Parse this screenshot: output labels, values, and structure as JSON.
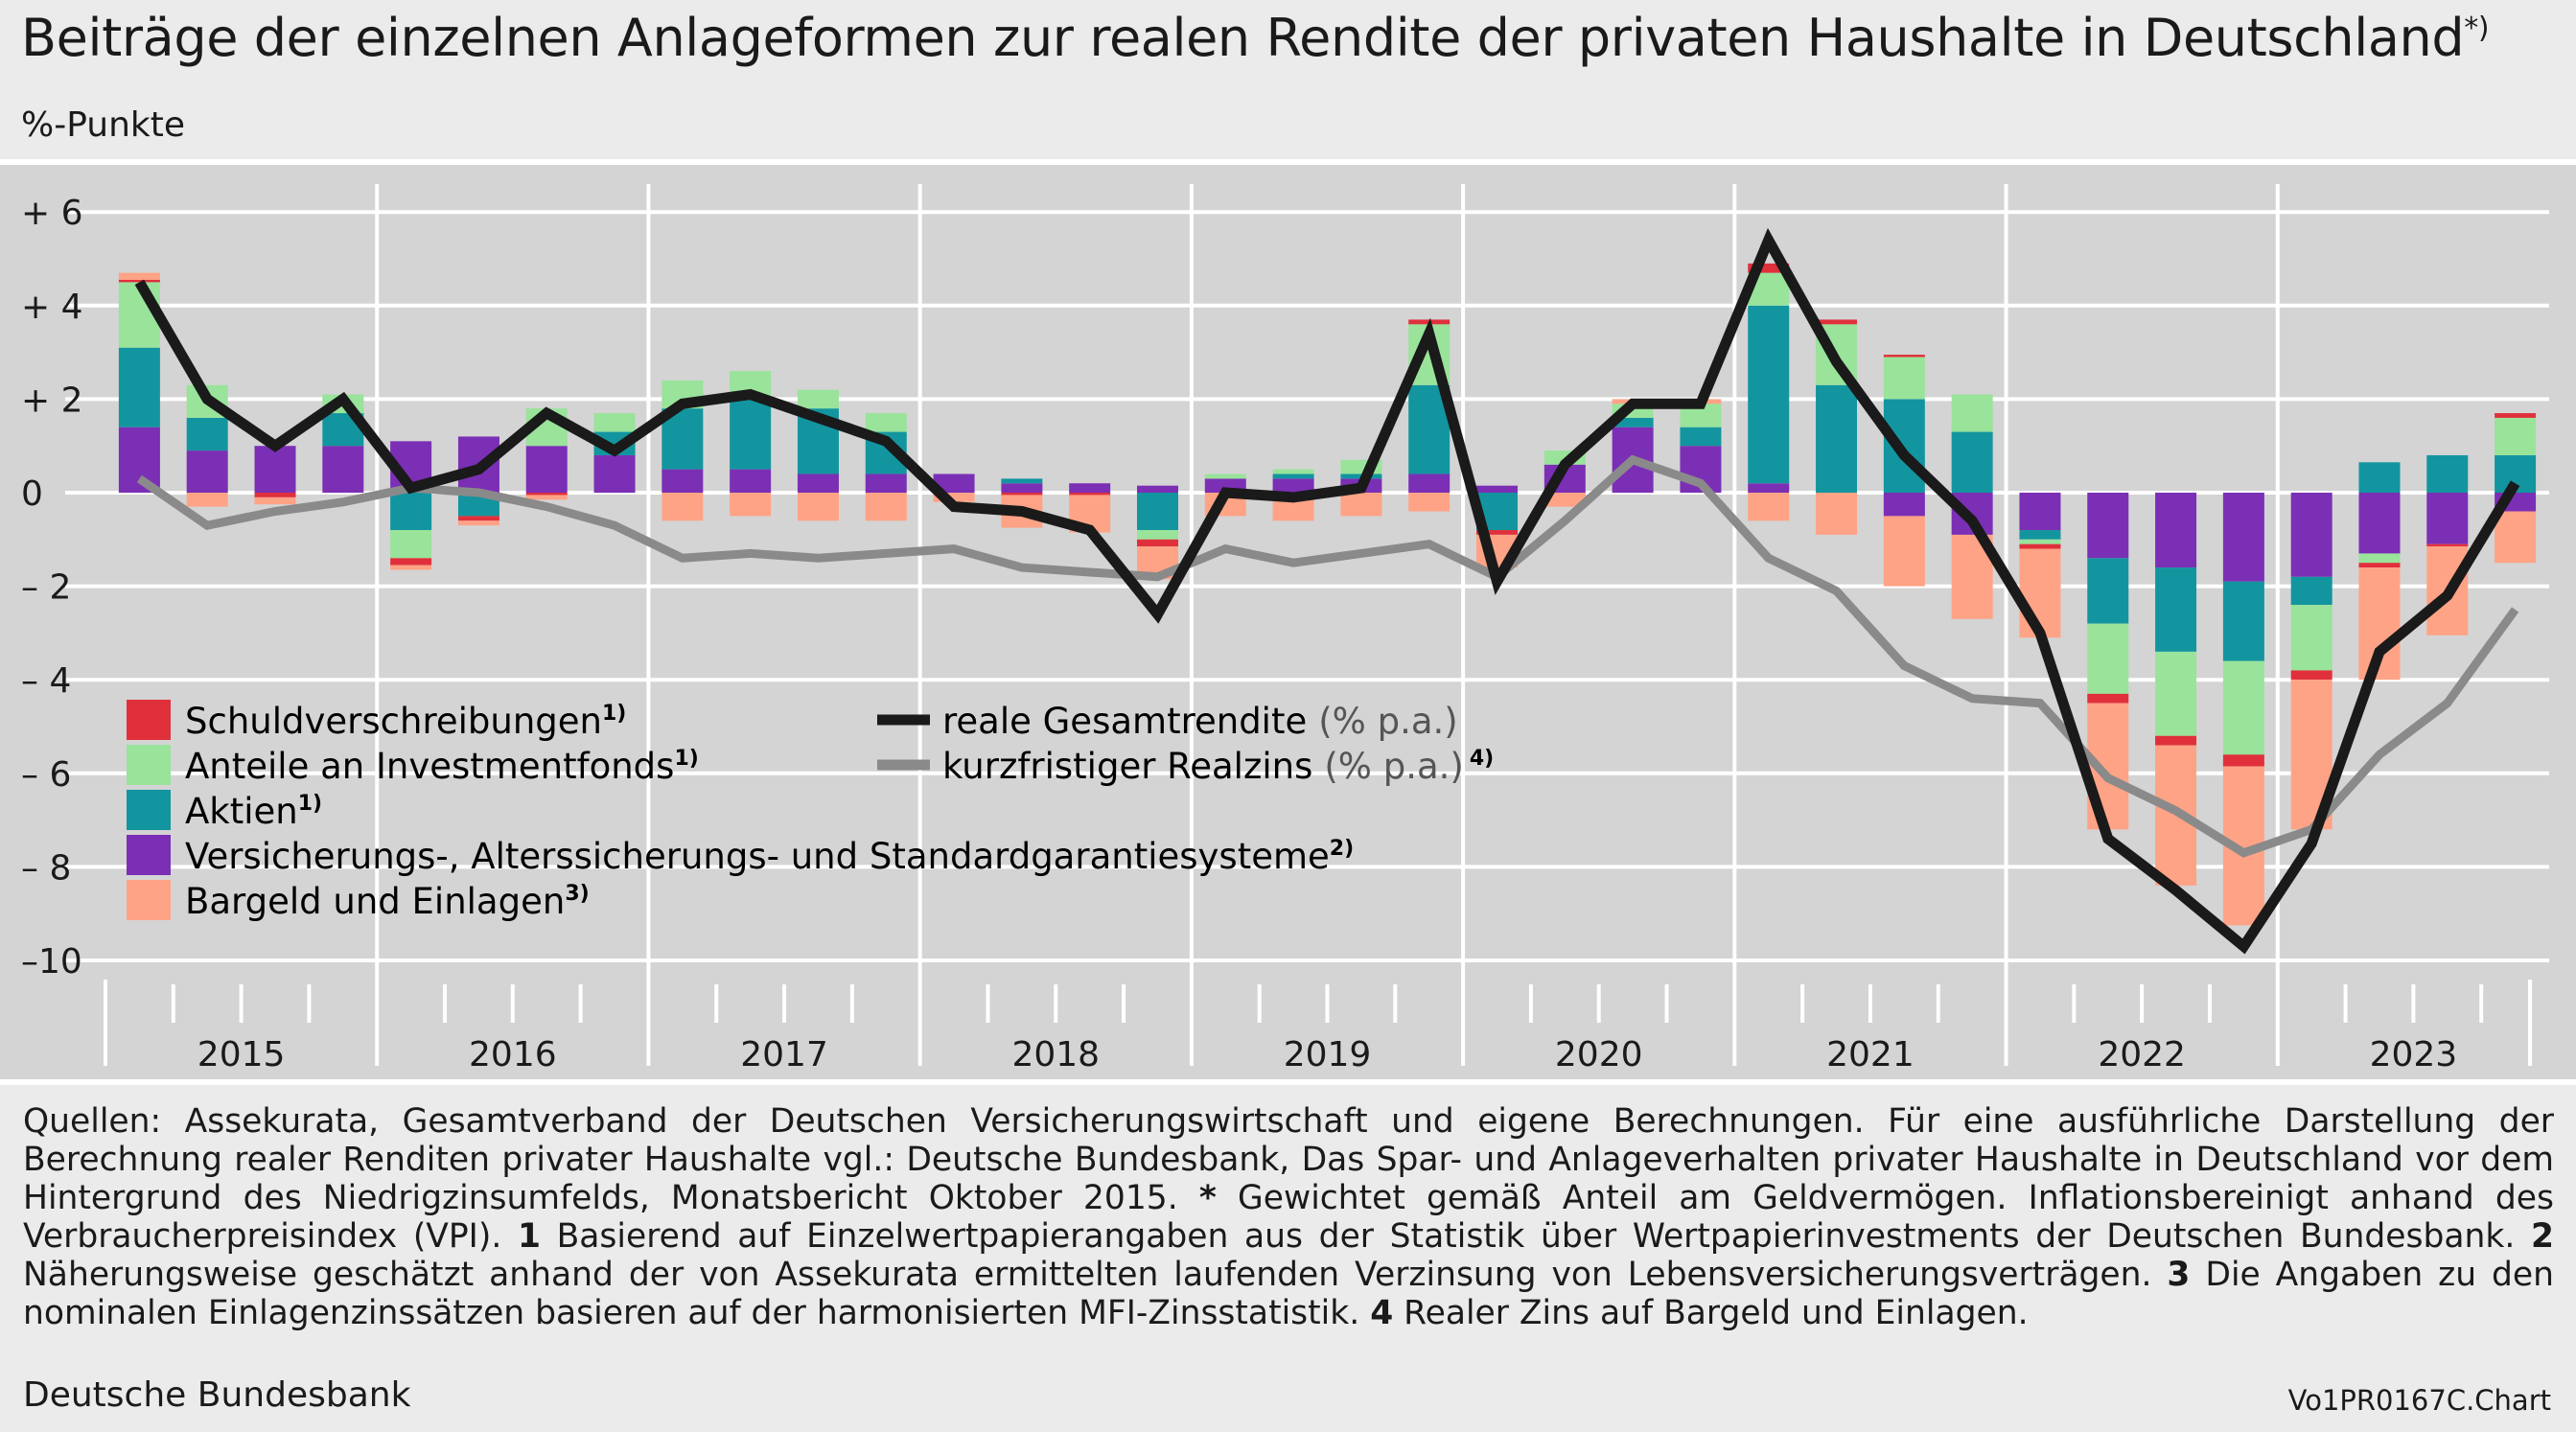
{
  "title": "Beiträge der einzelnen Anlageformen zur realen Rendite der privaten Haushalte in Deutschland",
  "title_sup": "*)",
  "unit": "%-Punkte",
  "source": "Deutsche Bundesbank",
  "code": "Vo1PR0167C.Chart",
  "notes": {
    "p1": "Quellen: Assekurata, Gesamtverband der Deutschen Versicherungswirtschaft und eigene Berechnungen. Für eine ausführliche Darstellung der Berechnung realer Renditen privater Haushalte vgl.: Deutsche Bundesbank, Das Spar- und Anlageverhalten privater Haushalte in Deutschland vor dem Hintergrund des Niedrigzinsumfelds, Monatsbericht Oktober 2015.",
    "star": "*",
    "p2": "Gewichtet gemäß Anteil am Geldvermögen. Inflationsbereinigt anhand des Verbraucherpreisindex (VPI).",
    "n1": "1",
    "t1": "Basierend auf Einzelwertpapierangaben aus der Statistik über Wertpapierinvestments der Deutschen Bundesbank.",
    "n2": "2",
    "t2": "Näherungsweise geschätzt anhand der von Assekurata ermittelten laufenden Verzinsung von Lebensversicherungsverträgen.",
    "n3": "3",
    "t3": "Die Angaben zu den nominalen Einlagenzinssätzen basieren auf der harmonisierten MFI-Zinsstatistik.",
    "n4": "4",
    "t4": "Realer Zins auf Bargeld und Einlagen."
  },
  "legend": {
    "bonds": "Schuldverschreibungen",
    "bonds_sup": "1)",
    "funds": "Anteile an Investmentfonds",
    "funds_sup": "1)",
    "equity": "Aktien",
    "equity_sup": "1)",
    "insurance": "Versicherungs-, Alterssicherungs- und Standardgarantiesysteme",
    "insurance_sup": "2)",
    "cash": "Bargeld und Einlagen",
    "cash_sup": "3)",
    "total_main": "reale Gesamtrendite",
    "total_suffix": "(% p.a.)",
    "short_main": "kurzfristiger Realzins",
    "short_suffix": "(% p.a.)",
    "short_sup": "4)"
  },
  "colors": {
    "bonds": "#e0303c",
    "funds": "#99e39b",
    "equity": "#13959f",
    "insurance": "#7b2fb5",
    "cash": "#ffa386",
    "total": "#1a1a1a",
    "short": "#8a8a8a",
    "plot_bg": "#d4d4d4"
  },
  "chart_data": {
    "type": "bar",
    "stacked": true,
    "x": [
      "2015Q1",
      "2015Q2",
      "2015Q3",
      "2015Q4",
      "2016Q1",
      "2016Q2",
      "2016Q3",
      "2016Q4",
      "2017Q1",
      "2017Q2",
      "2017Q3",
      "2017Q4",
      "2018Q1",
      "2018Q2",
      "2018Q3",
      "2018Q4",
      "2019Q1",
      "2019Q2",
      "2019Q3",
      "2019Q4",
      "2020Q1",
      "2020Q2",
      "2020Q3",
      "2020Q4",
      "2021Q1",
      "2021Q2",
      "2021Q3",
      "2021Q4",
      "2022Q1",
      "2022Q2",
      "2022Q3",
      "2022Q4",
      "2023Q1",
      "2023Q2",
      "2023Q3",
      "2023Q4"
    ],
    "year_labels": [
      "2015",
      "2016",
      "2017",
      "2018",
      "2019",
      "2020",
      "2021",
      "2022",
      "2023"
    ],
    "y_ticks": [
      6,
      4,
      2,
      0,
      -2,
      -4,
      -6,
      -8,
      -10
    ],
    "y_tick_labels": [
      "+ 6",
      "+ 4",
      "+ 2",
      "0",
      "– 2",
      "– 4",
      "– 6",
      "– 8",
      "–10"
    ],
    "ylim": [
      -11,
      6.5
    ],
    "series": [
      {
        "key": "insurance",
        "name": "Versicherungs-, Alterssicherungs- und Standardgarantiesysteme",
        "values": [
          1.4,
          0.9,
          1.0,
          1.0,
          1.1,
          1.2,
          1.0,
          0.8,
          0.5,
          0.5,
          0.4,
          0.4,
          0.4,
          0.2,
          0.2,
          0.15,
          0.3,
          0.3,
          0.3,
          0.4,
          0.15,
          0.6,
          1.4,
          1.0,
          0.2,
          0.0,
          -0.5,
          -0.9,
          -0.8,
          -1.4,
          -1.6,
          -1.9,
          -1.8,
          -1.3,
          -1.1,
          -0.4
        ]
      },
      {
        "key": "equity",
        "name": "Aktien",
        "values": [
          1.7,
          0.7,
          0.0,
          0.7,
          -0.8,
          -0.5,
          0.0,
          0.5,
          1.3,
          1.5,
          1.4,
          0.9,
          0.0,
          0.1,
          0.0,
          -0.8,
          0.0,
          0.1,
          0.1,
          1.9,
          -0.8,
          0.0,
          0.2,
          0.4,
          3.8,
          2.3,
          2.0,
          1.3,
          -0.2,
          -1.4,
          -1.8,
          -1.7,
          -0.6,
          0.65,
          0.8,
          0.8
        ]
      },
      {
        "key": "funds",
        "name": "Anteile an Investmentfonds",
        "values": [
          1.4,
          0.7,
          0.0,
          0.4,
          -0.6,
          0.0,
          0.8,
          0.4,
          0.6,
          0.6,
          0.4,
          0.4,
          0.0,
          0.0,
          0.0,
          -0.2,
          0.1,
          0.1,
          0.3,
          1.3,
          0.0,
          0.3,
          0.3,
          0.5,
          0.7,
          1.3,
          0.9,
          0.8,
          -0.1,
          -1.5,
          -1.8,
          -2.0,
          -1.4,
          -0.2,
          0.0,
          0.8
        ]
      },
      {
        "key": "bonds",
        "name": "Schuldverschreibungen",
        "values": [
          0.05,
          0.0,
          -0.1,
          0.0,
          -0.15,
          -0.1,
          -0.05,
          0.0,
          0.0,
          0.0,
          0.0,
          0.0,
          0.0,
          -0.05,
          -0.05,
          -0.15,
          0.0,
          0.0,
          0.0,
          0.1,
          -0.1,
          0.0,
          0.0,
          0.0,
          0.2,
          0.1,
          0.05,
          0.0,
          -0.1,
          -0.2,
          -0.2,
          -0.25,
          -0.2,
          -0.1,
          -0.05,
          0.1
        ]
      },
      {
        "key": "cash",
        "name": "Bargeld und Einlagen",
        "values": [
          0.15,
          -0.3,
          -0.15,
          0.0,
          -0.1,
          -0.1,
          -0.1,
          0.0,
          -0.6,
          -0.5,
          -0.6,
          -0.6,
          -0.2,
          -0.7,
          -0.8,
          -0.7,
          -0.5,
          -0.6,
          -0.5,
          -0.4,
          -0.7,
          -0.3,
          0.1,
          0.1,
          -0.6,
          -0.9,
          -1.5,
          -1.8,
          -1.9,
          -2.7,
          -3.0,
          -3.4,
          -3.2,
          -2.4,
          -1.9,
          -1.1
        ]
      }
    ],
    "lines": [
      {
        "key": "total",
        "name": "reale Gesamtrendite (% p.a.)",
        "values": [
          4.5,
          2.0,
          1.0,
          2.0,
          0.1,
          0.5,
          1.7,
          0.9,
          1.9,
          2.1,
          1.6,
          1.1,
          -0.3,
          -0.4,
          -0.8,
          -2.6,
          0.0,
          -0.1,
          0.1,
          3.4,
          -1.9,
          0.6,
          1.9,
          1.9,
          5.4,
          2.8,
          0.8,
          -0.6,
          -3.0,
          -7.4,
          -8.5,
          -9.7,
          -7.5,
          -3.4,
          -2.2,
          0.2
        ]
      },
      {
        "key": "short",
        "name": "kurzfristiger Realzins (% p.a.)",
        "values": [
          0.3,
          -0.7,
          -0.4,
          -0.2,
          0.1,
          0.0,
          -0.3,
          -0.7,
          -1.4,
          -1.3,
          -1.4,
          -1.3,
          -1.2,
          -1.6,
          -1.7,
          -1.8,
          -1.2,
          -1.5,
          -1.3,
          -1.1,
          -1.8,
          -0.6,
          0.7,
          0.2,
          -1.4,
          -2.1,
          -3.7,
          -4.4,
          -4.5,
          -6.1,
          -6.8,
          -7.7,
          -7.2,
          -5.6,
          -4.5,
          -2.5
        ]
      }
    ]
  }
}
